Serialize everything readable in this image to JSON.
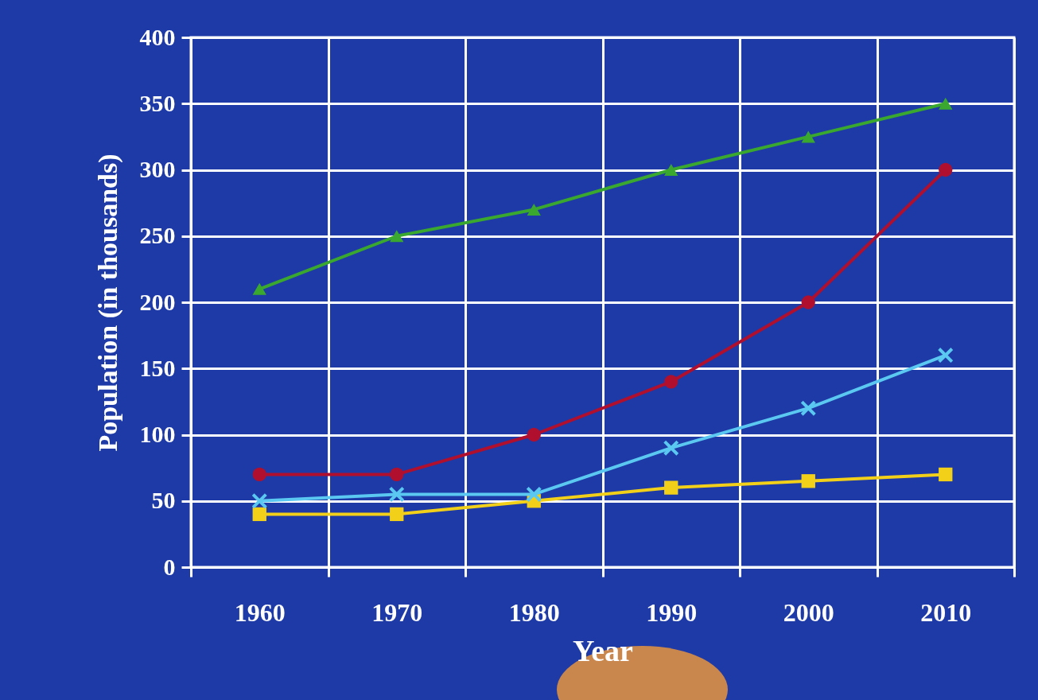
{
  "chart_data": {
    "type": "line",
    "xlabel": "Year",
    "ylabel": "Population (in thousands)",
    "categories": [
      "1960",
      "1970",
      "1980",
      "1990",
      "2000",
      "2010"
    ],
    "ylim": [
      0,
      400
    ],
    "yticks": [
      0,
      50,
      100,
      150,
      200,
      250,
      300,
      350,
      400
    ],
    "grid": true,
    "series": [
      {
        "color": "#3aa82e",
        "marker": "triangle",
        "values": [
          210,
          250,
          270,
          300,
          325,
          350
        ]
      },
      {
        "color": "#b0102e",
        "marker": "circle",
        "values": [
          70,
          70,
          100,
          140,
          200,
          300
        ]
      },
      {
        "color": "#5ac8f0",
        "marker": "cross",
        "values": [
          50,
          55,
          55,
          90,
          120,
          160
        ]
      },
      {
        "color": "#f2d01a",
        "marker": "square",
        "values": [
          40,
          40,
          50,
          60,
          65,
          70
        ]
      }
    ]
  }
}
